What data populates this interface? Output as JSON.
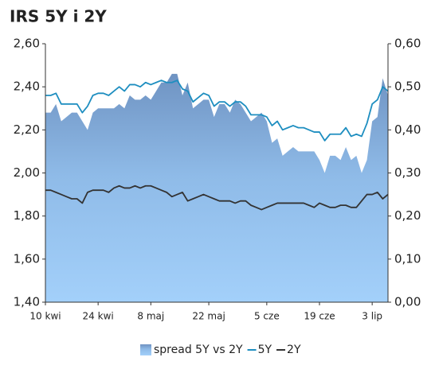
{
  "chart_data": {
    "type": "line",
    "title": "IRS 5Y i 2Y",
    "categories": [
      "10 kwi",
      null,
      null,
      null,
      null,
      null,
      null,
      null,
      null,
      null,
      "24 kwi",
      null,
      null,
      null,
      null,
      null,
      null,
      null,
      null,
      null,
      "8 maj",
      null,
      null,
      null,
      null,
      null,
      null,
      null,
      null,
      null,
      null,
      "22 maj",
      null,
      null,
      null,
      null,
      null,
      null,
      null,
      null,
      null,
      null,
      "5 cze",
      null,
      null,
      null,
      null,
      null,
      null,
      null,
      null,
      null,
      "19 cze",
      null,
      null,
      null,
      null,
      null,
      null,
      null,
      null,
      null,
      "3 lip",
      null,
      null,
      null
    ],
    "ylim": [
      1.4,
      2.6
    ],
    "yticks": [
      {
        "value": 1.4,
        "label": "1,40"
      },
      {
        "value": 1.6,
        "label": "1,60"
      },
      {
        "value": 1.8,
        "label": "1,80"
      },
      {
        "value": 2.0,
        "label": "2,00"
      },
      {
        "value": 2.2,
        "label": "2,20"
      },
      {
        "value": 2.4,
        "label": "2,40"
      },
      {
        "value": 2.6,
        "label": "2,60"
      }
    ],
    "y2lim": [
      0,
      0.6
    ],
    "y2ticks": [
      {
        "value": 0,
        "label": "0,00"
      },
      {
        "value": 0.1,
        "label": "0,10"
      },
      {
        "value": 0.2,
        "label": "0,20"
      },
      {
        "value": 0.3,
        "label": "0,30"
      },
      {
        "value": 0.4,
        "label": "0,40"
      },
      {
        "value": 0.5,
        "label": "0,50"
      },
      {
        "value": 0.6,
        "label": "0,60"
      }
    ],
    "series": [
      {
        "name": "spread 5Y vs 2Y",
        "type": "area",
        "axis": "y2",
        "color": "#6f93c2",
        "values": [
          0.44,
          0.44,
          0.46,
          0.42,
          0.43,
          0.44,
          0.44,
          0.42,
          0.4,
          0.44,
          0.45,
          0.45,
          0.45,
          0.45,
          0.46,
          0.45,
          0.48,
          0.47,
          0.47,
          0.48,
          0.47,
          0.49,
          0.51,
          0.51,
          0.53,
          0.53,
          0.48,
          0.51,
          0.45,
          0.46,
          0.47,
          0.47,
          0.43,
          0.46,
          0.46,
          0.44,
          0.47,
          0.46,
          0.44,
          0.42,
          0.43,
          0.44,
          0.42,
          0.37,
          0.38,
          0.34,
          0.35,
          0.36,
          0.35,
          0.35,
          0.35,
          0.35,
          0.33,
          0.3,
          0.34,
          0.34,
          0.33,
          0.36,
          0.33,
          0.34,
          0.3,
          0.33,
          0.42,
          0.43,
          0.52,
          0.48
        ]
      },
      {
        "name": "5Y",
        "type": "line",
        "color": "#1e8ec0",
        "values": [
          2.36,
          2.36,
          2.37,
          2.32,
          2.32,
          2.32,
          2.32,
          2.28,
          2.31,
          2.36,
          2.37,
          2.37,
          2.36,
          2.38,
          2.4,
          2.38,
          2.41,
          2.41,
          2.4,
          2.42,
          2.41,
          2.42,
          2.43,
          2.42,
          2.42,
          2.43,
          2.39,
          2.38,
          2.33,
          2.35,
          2.37,
          2.36,
          2.31,
          2.33,
          2.33,
          2.31,
          2.33,
          2.33,
          2.31,
          2.27,
          2.27,
          2.27,
          2.26,
          2.22,
          2.24,
          2.2,
          2.21,
          2.22,
          2.21,
          2.21,
          2.2,
          2.19,
          2.19,
          2.15,
          2.18,
          2.18,
          2.18,
          2.21,
          2.17,
          2.18,
          2.17,
          2.23,
          2.32,
          2.34,
          2.4,
          2.38
        ]
      },
      {
        "name": "2Y",
        "type": "line",
        "color": "#333333",
        "values": [
          1.92,
          1.92,
          1.91,
          1.9,
          1.89,
          1.88,
          1.88,
          1.86,
          1.91,
          1.92,
          1.92,
          1.92,
          1.91,
          1.93,
          1.94,
          1.93,
          1.93,
          1.94,
          1.93,
          1.94,
          1.94,
          1.93,
          1.92,
          1.91,
          1.89,
          1.9,
          1.91,
          1.87,
          1.88,
          1.89,
          1.9,
          1.89,
          1.88,
          1.87,
          1.87,
          1.87,
          1.86,
          1.87,
          1.87,
          1.85,
          1.84,
          1.83,
          1.84,
          1.85,
          1.86,
          1.86,
          1.86,
          1.86,
          1.86,
          1.86,
          1.85,
          1.84,
          1.86,
          1.85,
          1.84,
          1.84,
          1.85,
          1.85,
          1.84,
          1.84,
          1.87,
          1.9,
          1.9,
          1.91,
          1.88,
          1.9
        ]
      }
    ]
  }
}
